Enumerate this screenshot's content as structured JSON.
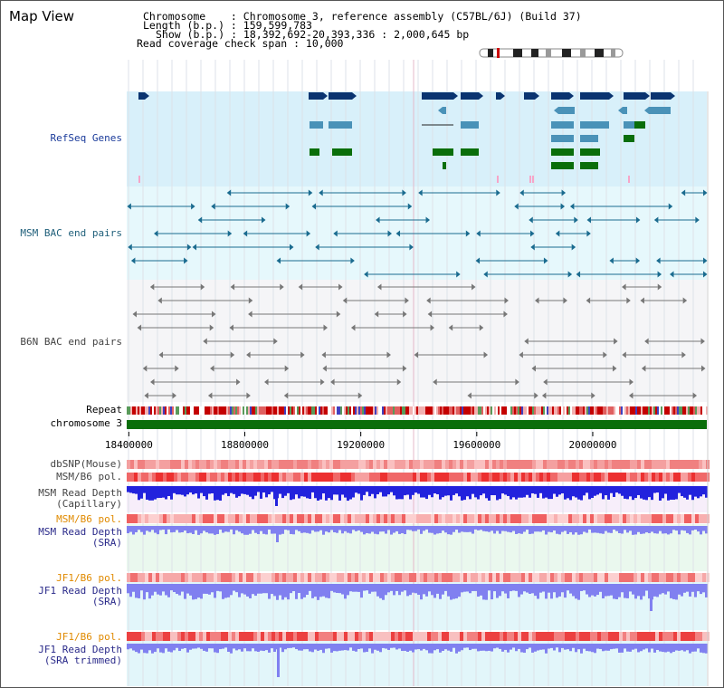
{
  "app": {
    "title": "Map View"
  },
  "info": {
    "chromosome_line": "Chromosome    : Chromosome 3, reference assembly (C57BL/6J) (Build 37)",
    "length_line": "Length (b.p.) : 159,599,783",
    "show_line": "Show (b.p.) : 18,392,692-20,393,336 : 2,000,645 bp",
    "coverage_line": "Read coverage check span : 10,000"
  },
  "tracks": {
    "refseq": "RefSeq Genes",
    "msm_bac": "MSM BAC end pairs",
    "b6n_bac": "B6N BAC end pairs",
    "repeat": "Repeat",
    "chromosome": "chromosome 3",
    "dbsnp": "dbSNP(Mouse)",
    "msm_pol": "MSM/B6 pol.",
    "msm_depth_cap_1": "MSM Read Depth",
    "msm_depth_cap_2": "(Capillary)",
    "msm_pol_2": "MSM/B6 pol.",
    "msm_depth_sra_1": "MSM Read Depth",
    "msm_depth_sra_2": "(SRA)",
    "jf1_pol": "JF1/B6 pol.",
    "jf1_depth_sra_1": "JF1 Read Depth",
    "jf1_depth_sra_2": "(SRA)",
    "jf1_pol_2": "JF1/B6 pol.",
    "jf1_depth_trim_1": "JF1 Read Depth",
    "jf1_depth_trim_2": "(SRA trimmed)"
  },
  "axis": {
    "ticks": [
      "18400000",
      "18800000",
      "19200000",
      "19600000",
      "20000000"
    ],
    "range": [
      18392692,
      20393336
    ]
  },
  "colors": {
    "refseq_bg": "#d8f0fa",
    "msm_bg": "#e6f8fc",
    "b6n_bg": "#f5f5f7",
    "dark_gene": "#0a3470",
    "mid_gene": "#4a92b8",
    "green_gene": "#0a6e0a",
    "msm_bac": "#1a6b8f",
    "b6n_bac": "#777777",
    "chromosome": "#0a6e0a",
    "depth_blue": "#2222dd",
    "depth_light": "#8080f0"
  }
}
